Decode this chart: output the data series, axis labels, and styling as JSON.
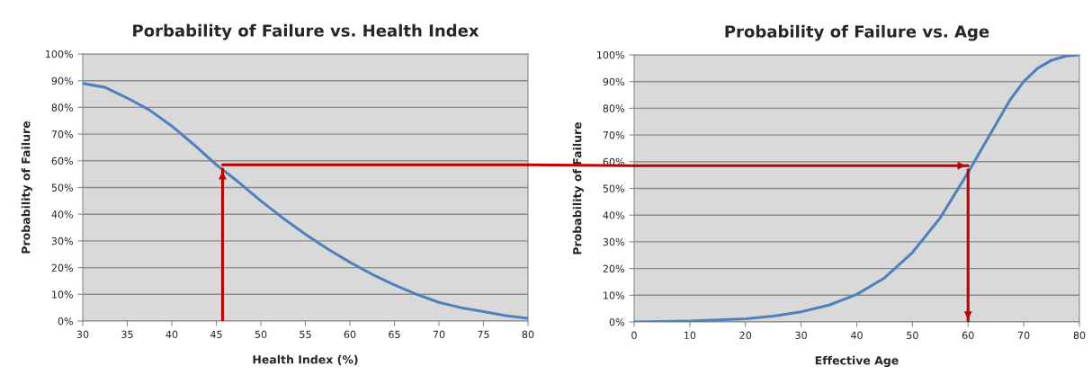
{
  "chart_data": [
    {
      "type": "line",
      "title": "Porbability of Failure vs. Health Index",
      "xlabel": "Health Index (%)",
      "ylabel": "Probability of Failure",
      "xlim": [
        30,
        80
      ],
      "xticks": [
        30,
        35,
        40,
        45,
        50,
        55,
        60,
        65,
        70,
        75,
        80
      ],
      "ylim": [
        0,
        100
      ],
      "yticks": [
        {
          "value": 0,
          "label": "0%"
        },
        {
          "value": 10,
          "label": "10%"
        },
        {
          "value": 20,
          "label": "20%"
        },
        {
          "value": 30,
          "label": "30%"
        },
        {
          "value": 40,
          "label": "40%"
        },
        {
          "value": 50,
          "label": "50%"
        },
        {
          "value": 60,
          "label": "60%"
        },
        {
          "value": 70,
          "label": "70%"
        },
        {
          "value": 80,
          "label": "80%"
        },
        {
          "value": 90,
          "label": "90%"
        },
        {
          "value": 100,
          "label": "100%"
        }
      ],
      "grid": "y",
      "legend": false,
      "series": [
        {
          "color": "#4f81bd",
          "x": [
            30,
            32.5,
            35,
            37.5,
            40,
            42.5,
            45,
            47.5,
            50,
            52.5,
            55,
            57.5,
            60,
            62.5,
            65,
            67.5,
            70,
            72.5,
            75,
            77.5,
            80
          ],
          "values": [
            89,
            87.5,
            83.5,
            79,
            73,
            66,
            58.5,
            52,
            45,
            38.5,
            32.5,
            27,
            22,
            17.5,
            13.5,
            10,
            7,
            5,
            3.5,
            2,
            1
          ]
        },
        {
          "color": "#c00000",
          "x": [
            45.7,
            45.7
          ],
          "values": [
            0,
            57
          ]
        },
        {
          "color": "#c00000",
          "x": [
            45.7,
            80
          ],
          "values": [
            58.5,
            58.5
          ]
        }
      ]
    },
    {
      "type": "line",
      "title": "Probability of Failure vs. Age",
      "xlabel": "Effective Age",
      "ylabel": "Probability of Failure",
      "xlim": [
        0,
        80
      ],
      "xticks": [
        0,
        10,
        20,
        30,
        40,
        50,
        60,
        70,
        80
      ],
      "ylim": [
        0,
        100
      ],
      "yticks": [
        {
          "value": 0,
          "label": "0%"
        },
        {
          "value": 10,
          "label": "10%"
        },
        {
          "value": 20,
          "label": "20%"
        },
        {
          "value": 30,
          "label": "30%"
        },
        {
          "value": 40,
          "label": "40%"
        },
        {
          "value": 50,
          "label": "50%"
        },
        {
          "value": 60,
          "label": "60%"
        },
        {
          "value": 70,
          "label": "70%"
        },
        {
          "value": 80,
          "label": "80%"
        },
        {
          "value": 90,
          "label": "90%"
        },
        {
          "value": 100,
          "label": "100%"
        }
      ],
      "grid": "y",
      "legend": false,
      "series": [
        {
          "color": "#4f81bd",
          "x": [
            0,
            10,
            20,
            25,
            30,
            35,
            40,
            45,
            50,
            55,
            60,
            62.5,
            65,
            67.5,
            70,
            72.5,
            75,
            77.5,
            80
          ],
          "values": [
            0,
            0.3,
            1.2,
            2.2,
            3.8,
            6.3,
            10.3,
            16.5,
            26,
            39,
            56,
            65,
            74,
            83,
            90,
            95,
            98,
            99.5,
            100
          ]
        },
        {
          "color": "#c00000",
          "x": [
            0,
            60
          ],
          "values": [
            58.5,
            58.5
          ]
        },
        {
          "color": "#c00000",
          "x": [
            60,
            60
          ],
          "values": [
            57,
            0
          ]
        }
      ]
    }
  ]
}
